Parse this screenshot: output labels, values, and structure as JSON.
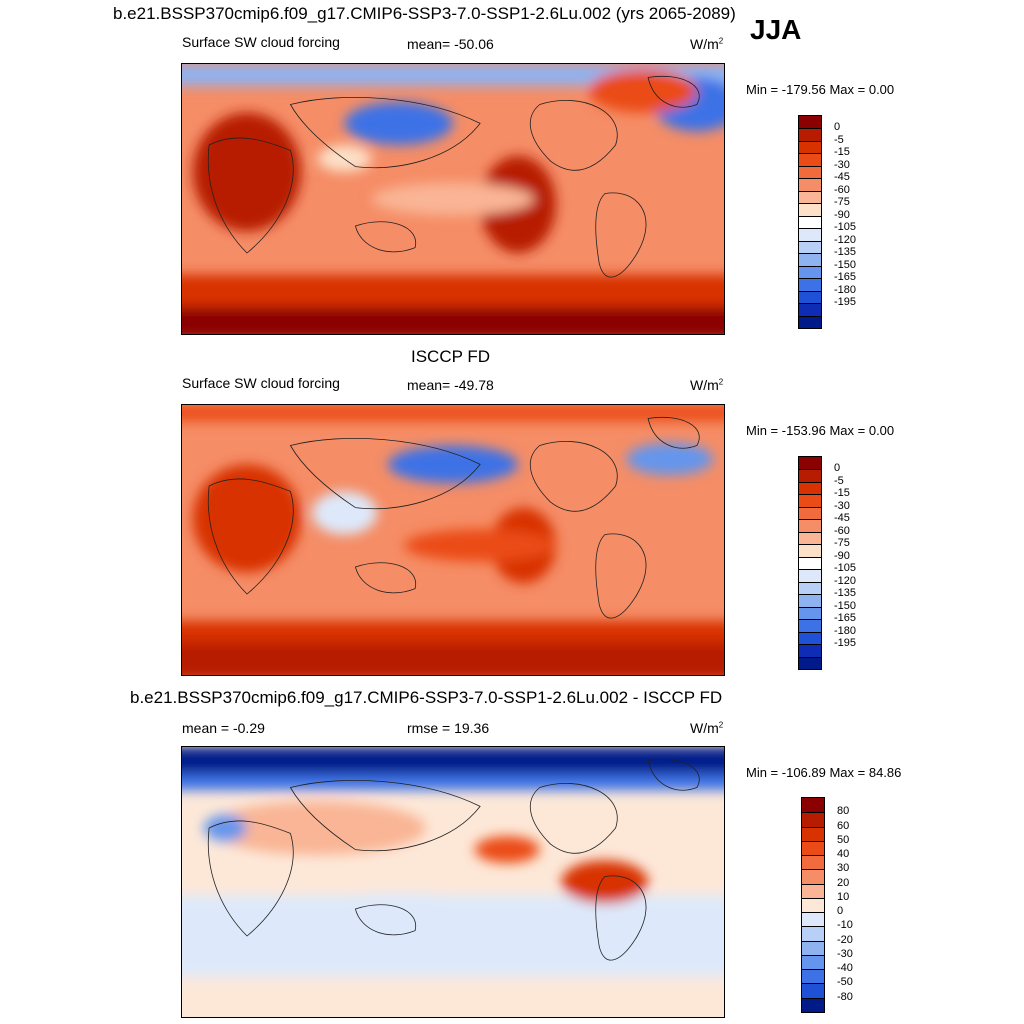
{
  "season": "JJA",
  "panels": [
    {
      "title": "b.e21.BSSP370cmip6.f09_g17.CMIP6-SSP3-7.0-SSP1-2.6Lu.002 (yrs 2065-2089)",
      "left_label": "Surface SW cloud forcing",
      "center_label": "mean= -50.06",
      "units": "W/m",
      "units_sup": "2",
      "minmax": "Min = -179.56 Max =   0.00"
    },
    {
      "title": "ISCCP FD",
      "left_label": "Surface SW cloud forcing",
      "center_label": "mean= -49.78",
      "units": "W/m",
      "units_sup": "2",
      "minmax": "Min = -153.96 Max =   0.00"
    },
    {
      "title": "b.e21.BSSP370cmip6.f09_g17.CMIP6-SSP3-7.0-SSP1-2.6Lu.002 - ISCCP FD",
      "left_label": "mean =  -0.29",
      "center_label": "rmse =  19.36",
      "units": "W/m",
      "units_sup": "2",
      "minmax": "Min = -106.89 Max =  84.86"
    }
  ],
  "chart_data": [
    {
      "type": "heatmap",
      "title": "b.e21.BSSP370cmip6.f09_g17.CMIP6-SSP3-7.0-SSP1-2.6Lu.002 (yrs 2065-2089)",
      "variable": "Surface SW cloud forcing",
      "mean": -50.06,
      "min": -179.56,
      "max": 0.0,
      "units": "W/m2",
      "colorbar_levels": [
        "0",
        "-5",
        "-15",
        "-30",
        "-45",
        "-60",
        "-75",
        "-90",
        "-105",
        "-120",
        "-135",
        "-150",
        "-165",
        "-180",
        "-195"
      ],
      "colorbar_colors": [
        "#8b0000",
        "#b71c00",
        "#d83200",
        "#eb4c17",
        "#f26b3e",
        "#f58d66",
        "#f9b595",
        "#fde0c8",
        "#ffffff",
        "#dde9fb",
        "#b8d0f6",
        "#8fb2f1",
        "#6595ec",
        "#3d72e6",
        "#1f51d6",
        "#0e2cb4",
        "#001a8a"
      ]
    },
    {
      "type": "heatmap",
      "title": "ISCCP FD",
      "variable": "Surface SW cloud forcing",
      "mean": -49.78,
      "min": -153.96,
      "max": 0.0,
      "units": "W/m2",
      "colorbar_levels": [
        "0",
        "-5",
        "-15",
        "-30",
        "-45",
        "-60",
        "-75",
        "-90",
        "-105",
        "-120",
        "-135",
        "-150",
        "-165",
        "-180",
        "-195"
      ],
      "colorbar_colors": [
        "#8b0000",
        "#b71c00",
        "#d83200",
        "#eb4c17",
        "#f26b3e",
        "#f58d66",
        "#f9b595",
        "#fde0c8",
        "#ffffff",
        "#dde9fb",
        "#b8d0f6",
        "#8fb2f1",
        "#6595ec",
        "#3d72e6",
        "#1f51d6",
        "#0e2cb4",
        "#001a8a"
      ]
    },
    {
      "type": "heatmap",
      "title": "b.e21.BSSP370cmip6.f09_g17.CMIP6-SSP3-7.0-SSP1-2.6Lu.002 - ISCCP FD",
      "mean": -0.29,
      "rmse": 19.36,
      "min": -106.89,
      "max": 84.86,
      "units": "W/m2",
      "colorbar_levels": [
        "80",
        "60",
        "50",
        "40",
        "30",
        "20",
        "10",
        "0",
        "-10",
        "-20",
        "-30",
        "-40",
        "-50",
        "-80"
      ],
      "colorbar_colors": [
        "#8b0000",
        "#b71c00",
        "#d83200",
        "#eb4c17",
        "#f26b3e",
        "#f58d66",
        "#f9b595",
        "#fde8d8",
        "#dde9fb",
        "#b8d0f6",
        "#8fb2f1",
        "#6595ec",
        "#3d72e6",
        "#1f51d6",
        "#001a8a"
      ]
    }
  ]
}
